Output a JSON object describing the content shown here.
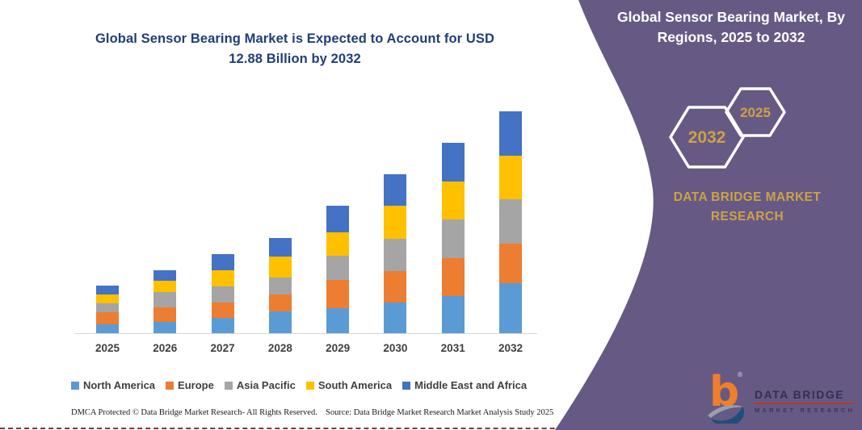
{
  "chart": {
    "title_line1": "Global Sensor Bearing Market is Expected to Account for USD",
    "title_line2": "12.88 Billion by 2032"
  },
  "chart_data": {
    "type": "bar",
    "stacked": true,
    "title": "Global Sensor Bearing Market is Expected to Account for USD 12.88 Billion by 2032",
    "unit": "USD Billion",
    "categories": [
      "2025",
      "2026",
      "2027",
      "2028",
      "2029",
      "2030",
      "2031",
      "2032"
    ],
    "totals": [
      2.75,
      3.65,
      4.59,
      5.53,
      7.41,
      9.21,
      11.05,
      12.88
    ],
    "series": [
      {
        "name": "North America",
        "color": "#5B9BD5",
        "values": [
          0.5,
          0.64,
          0.9,
          1.29,
          1.46,
          1.8,
          2.15,
          2.92
        ]
      },
      {
        "name": "Europe",
        "color": "#ED7D31",
        "values": [
          0.72,
          0.84,
          0.9,
          0.97,
          1.64,
          1.83,
          2.22,
          2.26
        ]
      },
      {
        "name": "Asia Pacific",
        "color": "#A5A5A5",
        "values": [
          0.53,
          0.89,
          0.92,
          0.98,
          1.39,
          1.84,
          2.23,
          2.58
        ]
      },
      {
        "name": "South America",
        "color": "#FFC000",
        "values": [
          0.48,
          0.66,
          0.95,
          1.23,
          1.37,
          1.95,
          2.22,
          2.54
        ]
      },
      {
        "name": "Middle East and Africa",
        "color": "#4472C4",
        "values": [
          0.52,
          0.62,
          0.92,
          1.06,
          1.55,
          1.79,
          2.23,
          2.58
        ]
      }
    ],
    "xlabel": "",
    "ylabel": "",
    "ylim": [
      0,
      13
    ],
    "grid": false,
    "legend_position": "bottom"
  },
  "sidebar": {
    "title_line1": "Global Sensor Bearing Market, By",
    "title_line2": "Regions, 2025 to 2032",
    "hexagon_back_label": "2032",
    "hexagon_front_label": "2025",
    "brand_line1": "DATA BRIDGE MARKET",
    "brand_line2": "RESEARCH",
    "colors": {
      "panel": "#665A85",
      "accent_gold": "#CFA146",
      "hex_outline": "#FFFFFF"
    }
  },
  "logo": {
    "name": "DATA BRIDGE",
    "subtitle": "MARKET RESEARCH",
    "colors": {
      "b_mark": "#F07E2A",
      "d_swoosh": "#1F4E79"
    }
  },
  "footer": {
    "left": "DMCA Protected © Data Bridge Market Research-  All Rights Reserved.",
    "right": "Source: Data Bridge Market Research  Market Analysis Study 2025"
  }
}
